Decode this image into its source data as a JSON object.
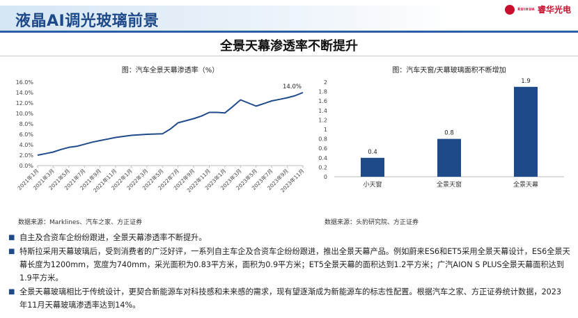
{
  "header": {
    "title": "液晶AI调光玻璃前景",
    "logo_text": "睿华光电",
    "logo_sub": "RUIHUA"
  },
  "subtitle": "全景天幕渗透率不断提升",
  "left_source": "数据来源：Marklines、汽车之家、方正证券",
  "right_source": "数据来源：头豹研究院、方正证券",
  "colors": {
    "accent": "#1f4a8a",
    "bar": "#1f4a8a",
    "line": "#1f4a8a"
  },
  "chart_data": [
    {
      "type": "line",
      "title": "图：汽车全景天幕渗透率（%）",
      "x": [
        "2021年1月",
        "2021年2月",
        "2021年3月",
        "2021年4月",
        "2021年5月",
        "2021年6月",
        "2021年7月",
        "2021年8月",
        "2021年9月",
        "2021年10月",
        "2021年11月",
        "2021年12月",
        "2022年1月",
        "2022年2月",
        "2022年3月",
        "2022年4月",
        "2022年5月",
        "2022年6月",
        "2022年7月",
        "2022年8月",
        "2022年9月",
        "2022年10月",
        "2022年11月",
        "2022年12月",
        "2023年1月",
        "2023年2月",
        "2023年3月",
        "2023年4月",
        "2023年5月",
        "2023年6月",
        "2023年7月",
        "2023年8月",
        "2023年9月",
        "2023年10月",
        "2023年11月"
      ],
      "x_tick_labels": [
        "2021年1月",
        "2021年3月",
        "2021年5月",
        "2021年7月",
        "2021年9月",
        "2021年11月",
        "2022年1月",
        "2022年3月",
        "2022年5月",
        "2022年7月",
        "2022年9月",
        "2022年11月",
        "2023年1月",
        "2023年3月",
        "2023年5月",
        "2023年7月",
        "2023年9月",
        "2023年11月"
      ],
      "y": [
        2.0,
        2.3,
        2.6,
        3.1,
        3.5,
        3.7,
        4.1,
        4.5,
        4.8,
        5.1,
        5.4,
        5.6,
        5.8,
        5.9,
        6.0,
        6.05,
        6.1,
        7.0,
        8.2,
        8.6,
        9.0,
        9.5,
        10.2,
        10.2,
        10.1,
        11.3,
        12.6,
        12.0,
        11.4,
        11.9,
        12.4,
        12.7,
        13.0,
        13.4,
        14.0
      ],
      "ylim": [
        0,
        16
      ],
      "y_ticks": [
        "0.0%",
        "2.0%",
        "4.0%",
        "6.0%",
        "8.0%",
        "10.0%",
        "12.0%",
        "14.0%",
        "16.0%"
      ],
      "last_label": "14.0%",
      "grid": false
    },
    {
      "type": "bar",
      "title": "图：汽车天窗/天幕玻璃面积不断增加",
      "categories": [
        "小天窗",
        "全景天窗",
        "全景天幕"
      ],
      "values": [
        0.4,
        0.8,
        1.9
      ],
      "value_labels": [
        "0.4",
        "0.8",
        "1.9"
      ],
      "ylim": [
        0,
        2
      ],
      "y_ticks": [
        "0",
        "0.2",
        "0.4",
        "0.6",
        "0.8",
        "1",
        "1.2",
        "1.4",
        "1.6",
        "1.8",
        "2"
      ],
      "grid": false
    }
  ],
  "bullets": [
    "自主及合资车企纷纷跟进，全景天幕渗透率不断提升。",
    "特斯拉采用天幕玻璃后，受到消费者的广泛好评，一系列自主车企及合资车企纷纷跟进，推出全景天幕产品。例如蔚来ES6和ET5采用全景天幕设计，ES6全景天幕长度为1200mm，宽度为740mm，采光面积为0.83平方米，面积为0.9平方米；ET5全景天幕的面积达到1.2平方米；广汽AION S PLUS全景天幕面积达到1.9平方米。",
    "全景天幕玻璃相比于传统设计，更契合新能源车对科技感和未来感的需求，现有望逐渐成为新能源车的标志性配置。根据汽车之家、方正证券统计数据，2023 年11月天幕玻璃渗透率达到14%。"
  ]
}
